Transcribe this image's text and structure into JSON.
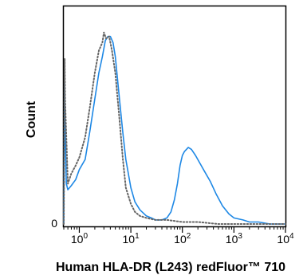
{
  "chart_data": {
    "type": "line",
    "title": "",
    "xlabel": "Human HLA-DR (L243) redFluor™ 710",
    "ylabel": "Count",
    "x_scale": "log",
    "xlim": [
      0.5,
      10000
    ],
    "ylim": [
      0,
      100
    ],
    "grid": false,
    "legend": "none",
    "x_ticks": [
      {
        "base": "10",
        "exp": "0",
        "value": 1
      },
      {
        "base": "10",
        "exp": "1",
        "value": 10
      },
      {
        "base": "10",
        "exp": "2",
        "value": 100
      },
      {
        "base": "10",
        "exp": "3",
        "value": 1000
      },
      {
        "base": "10",
        "exp": "4",
        "value": 10000
      }
    ],
    "y_ticks": [
      {
        "label": "0",
        "value": 0
      }
    ],
    "series": [
      {
        "style": "solid",
        "color": "#1e88e5",
        "x": [
          0.5,
          0.52,
          0.53,
          0.56,
          0.6,
          0.7,
          0.85,
          1.0,
          1.3,
          1.6,
          2.0,
          2.4,
          2.8,
          3.2,
          3.6,
          4.0,
          4.5,
          5.0,
          6.0,
          7.0,
          8.0,
          10.0,
          12.0,
          15.0,
          20.0,
          25.0,
          30.0,
          40.0,
          50.0,
          60.0,
          70.0,
          80.0,
          90.0,
          100.0,
          110.0,
          120.0,
          130.0,
          150.0,
          180.0,
          220.0,
          270.0,
          350.0,
          450.0,
          600.0,
          800.0,
          1000.0,
          1500.0,
          2000.0,
          3000.0,
          5000.0,
          10000.0
        ],
        "y": [
          0,
          70,
          50,
          20,
          17,
          19,
          22,
          27,
          32,
          46,
          62,
          75,
          83,
          91,
          93,
          93,
          90,
          83,
          62,
          45,
          32,
          18,
          11,
          7,
          4,
          3,
          2,
          2,
          3,
          6,
          12,
          20,
          29,
          34,
          36,
          37,
          38,
          37,
          34,
          30,
          26,
          21,
          15,
          9,
          5,
          3,
          2,
          1,
          1,
          0,
          0
        ]
      },
      {
        "style": "dotted",
        "color": "#666666",
        "x": [
          0.5,
          0.52,
          0.53,
          0.6,
          0.7,
          0.85,
          1.0,
          1.3,
          1.6,
          2.0,
          2.4,
          2.8,
          3.0,
          3.3,
          3.8,
          4.3,
          5.0,
          6.0,
          7.0,
          8.0,
          10.0,
          12.0,
          15.0,
          20.0,
          30.0,
          50.0,
          100.0,
          200.0,
          500.0,
          1000.0,
          10000.0
        ],
        "y": [
          0,
          82,
          62,
          20,
          25,
          29,
          33,
          43,
          58,
          75,
          86,
          90,
          95,
          92,
          93,
          86,
          75,
          52,
          32,
          18,
          10,
          6,
          4,
          3,
          2,
          2,
          1,
          1,
          0,
          0,
          0
        ]
      }
    ]
  }
}
